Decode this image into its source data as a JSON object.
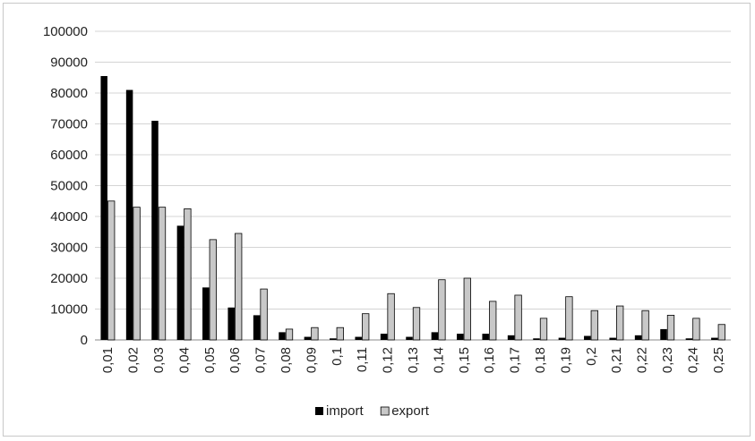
{
  "chart_data": {
    "type": "bar",
    "categories": [
      "0,01",
      "0,02",
      "0,03",
      "0,04",
      "0,05",
      "0,06",
      "0,07",
      "0,08",
      "0,09",
      "0,1",
      "0,11",
      "0,12",
      "0,13",
      "0,14",
      "0,15",
      "0,16",
      "0,17",
      "0,18",
      "0,19",
      "0,2",
      "0,21",
      "0,22",
      "0,23",
      "0,24",
      "0,25"
    ],
    "series": [
      {
        "name": "import",
        "color": "#000000",
        "values": [
          85500,
          81000,
          71000,
          37000,
          17000,
          10500,
          8000,
          2500,
          1000,
          500,
          1000,
          2000,
          1000,
          2500,
          2000,
          2000,
          1500,
          500,
          700,
          1300,
          700,
          1500,
          3500,
          500,
          700
        ]
      },
      {
        "name": "export",
        "color": "#c8c8c8",
        "values": [
          45000,
          43000,
          43000,
          42500,
          32500,
          34500,
          16500,
          3500,
          4000,
          4000,
          8500,
          15000,
          10500,
          19500,
          20000,
          12500,
          14500,
          7000,
          14000,
          9500,
          11000,
          9500,
          8000,
          7000,
          5000
        ]
      }
    ],
    "y_ticks": [
      "0",
      "10000",
      "20000",
      "30000",
      "40000",
      "50000",
      "60000",
      "70000",
      "80000",
      "90000",
      "100000"
    ],
    "ylim": [
      0,
      100000
    ],
    "grid": true,
    "legend_position": "bottom"
  }
}
